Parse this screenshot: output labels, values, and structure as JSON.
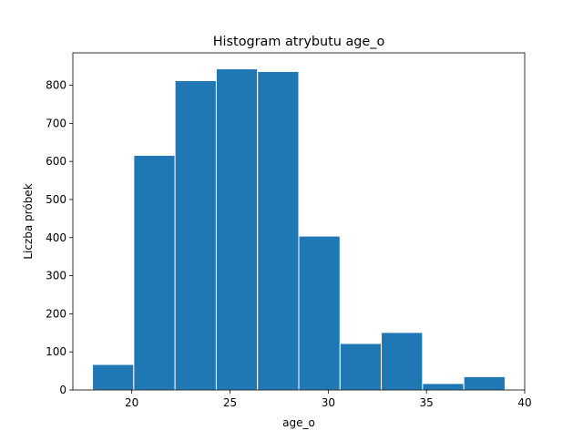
{
  "chart_data": {
    "type": "bar",
    "title": "Histogram atrybutu age_o",
    "xlabel": "age_o",
    "ylabel": "Liczba próbek",
    "bin_edges": [
      18.0,
      20.1,
      22.2,
      24.3,
      26.4,
      28.5,
      30.6,
      32.7,
      34.8,
      36.9,
      39.0
    ],
    "values": [
      67,
      616,
      812,
      843,
      836,
      404,
      122,
      151,
      17,
      35
    ],
    "xlim": [
      17.0,
      40.0
    ],
    "ylim": [
      0,
      885
    ],
    "xticks": [
      20,
      25,
      30,
      35,
      40
    ],
    "yticks": [
      0,
      100,
      200,
      300,
      400,
      500,
      600,
      700,
      800
    ],
    "bar_color": "#1f77b4",
    "edge_color": "#ffffff",
    "grid": false,
    "legend": "none"
  }
}
